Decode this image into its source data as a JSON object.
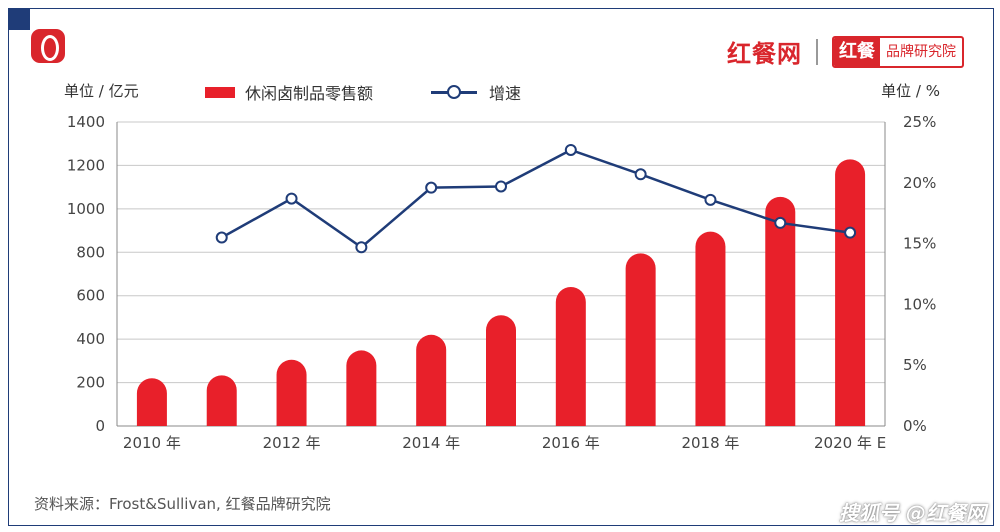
{
  "brand": {
    "name": "红餐网",
    "box_left": "红餐",
    "box_right": "品牌研究院"
  },
  "units": {
    "left": "单位 / 亿元",
    "right": "单位 / %"
  },
  "source": "资料来源：Frost&Sullivan, 红餐品牌研究院",
  "footer_mark": "搜狐号 @红餐网",
  "colors": {
    "bar": "#e8202a",
    "line": "#1f3c78",
    "frame": "#1f3c78",
    "grid": "#c8c8c8"
  },
  "chart_data": {
    "type": "bar+line",
    "categories": [
      "2010",
      "2011",
      "2012",
      "2013",
      "2014",
      "2015",
      "2016",
      "2017",
      "2018",
      "2019",
      "2020E"
    ],
    "x_tick_labels": [
      "2010 年",
      "",
      "2012 年",
      "",
      "2014 年",
      "",
      "2016 年",
      "",
      "2018 年",
      "",
      "2020 年 E"
    ],
    "series": [
      {
        "name": "休闲卤制品零售额",
        "type": "bar",
        "axis": "left",
        "values": [
          220,
          233,
          305,
          348,
          420,
          510,
          640,
          795,
          895,
          1055,
          1228
        ]
      },
      {
        "name": "增速",
        "type": "line",
        "axis": "right",
        "values": [
          null,
          15.5,
          18.7,
          14.7,
          19.6,
          19.7,
          22.7,
          20.7,
          18.6,
          16.7,
          15.9
        ]
      }
    ],
    "y_left": {
      "min": 0,
      "max": 1400,
      "ticks": [
        0,
        200,
        400,
        600,
        800,
        1000,
        1200,
        1400
      ]
    },
    "y_right": {
      "min": 0,
      "max": 25,
      "ticks": [
        "0%",
        "5%",
        "10%",
        "15%",
        "20%",
        "25%"
      ]
    },
    "grid": true,
    "legend_position": "top"
  }
}
